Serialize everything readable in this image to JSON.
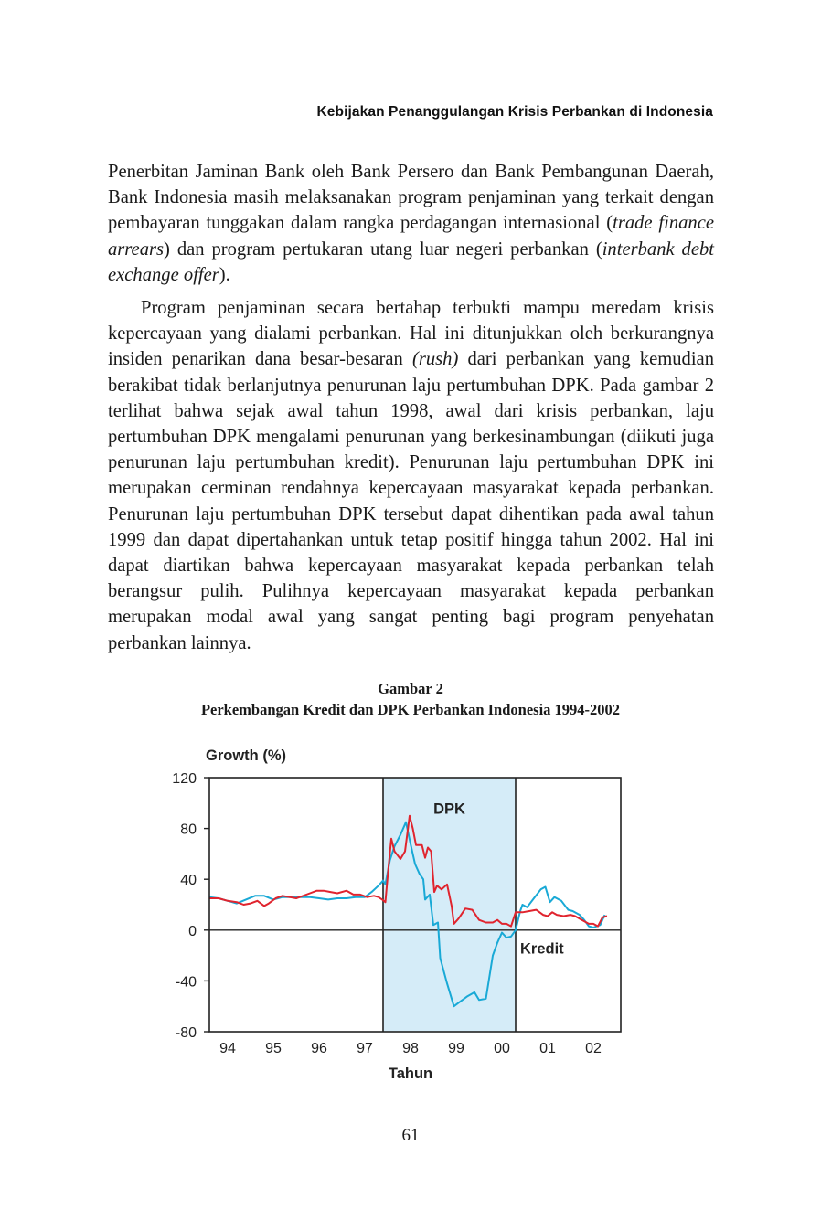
{
  "header": {
    "running_title": "Kebijakan Penanggulangan Krisis Perbankan di Indonesia"
  },
  "body": {
    "p1": [
      {
        "text": "Penerbitan Jaminan Bank oleh Bank Persero dan Bank Pembangunan Daerah, Bank Indonesia masih melaksanakan program penjaminan yang terkait dengan pembayaran tunggakan dalam rangka perdagangan internasional (",
        "italic": false
      },
      {
        "text": "trade finance arrears",
        "italic": true
      },
      {
        "text": ") dan program pertukaran utang luar negeri perbankan (",
        "italic": false
      },
      {
        "text": "interbank debt exchange offer",
        "italic": true
      },
      {
        "text": ").",
        "italic": false
      }
    ],
    "p2": [
      {
        "text": "Program penjaminan secara bertahap terbukti mampu meredam krisis kepercayaan yang dialami perbankan. Hal ini ditunjukkan oleh berkurangnya insiden penarikan dana besar-besaran ",
        "italic": false
      },
      {
        "text": "(rush)",
        "italic": true
      },
      {
        "text": " dari perbankan yang kemudian berakibat tidak berlanjutnya penurunan laju pertumbuhan DPK. Pada gambar 2 terlihat bahwa sejak awal tahun 1998, awal dari krisis perbankan, laju pertumbuhan DPK mengalami penurunan yang berkesinambungan (diikuti juga penurunan laju pertumbuhan kredit). Penurunan laju pertumbuhan DPK ini merupakan cerminan rendahnya kepercayaan masyarakat kepada perbankan. Penurunan laju pertumbuhan DPK tersebut dapat dihentikan pada awal tahun 1999 dan dapat dipertahankan untuk tetap positif hingga tahun 2002. Hal ini dapat diartikan bahwa kepercayaan masyarakat kepada perbankan telah berangsur pulih. Pulihnya kepercayaan masyarakat kepada perbankan merupakan modal awal yang sangat penting bagi program penyehatan perbankan lainnya.",
        "italic": false
      }
    ]
  },
  "figure": {
    "label": "Gambar 2",
    "title": "Perkembangan Kredit dan DPK Perbankan Indonesia 1994-2002"
  },
  "chart_data": {
    "type": "line",
    "ylabel": "Growth (%)",
    "xlabel": "Tahun",
    "ylim": [
      -80,
      120
    ],
    "yticks": [
      120,
      80,
      40,
      0,
      -40,
      -80
    ],
    "xlim": [
      1993.6,
      2002.6
    ],
    "xticks": [
      {
        "label": "94",
        "value": 1994.0
      },
      {
        "label": "95",
        "value": 1995.0
      },
      {
        "label": "96",
        "value": 1996.0
      },
      {
        "label": "97",
        "value": 1997.0
      },
      {
        "label": "98",
        "value": 1998.0
      },
      {
        "label": "99",
        "value": 1999.0
      },
      {
        "label": "00",
        "value": 2000.0
      },
      {
        "label": "01",
        "value": 2001.0
      },
      {
        "label": "02",
        "value": 2002.0
      }
    ],
    "shaded_region": {
      "label": "DPK",
      "x_start": 1997.4,
      "x_end": 2000.3,
      "color": "#d5ecf8"
    },
    "zero_line": true,
    "series": [
      {
        "name": "DPK",
        "color": "#19a9d6",
        "points": [
          [
            1993.6,
            26
          ],
          [
            1993.8,
            25
          ],
          [
            1994.0,
            23
          ],
          [
            1994.2,
            21
          ],
          [
            1994.4,
            24
          ],
          [
            1994.6,
            27
          ],
          [
            1994.8,
            27
          ],
          [
            1995.0,
            24
          ],
          [
            1995.2,
            26
          ],
          [
            1995.4,
            26
          ],
          [
            1995.6,
            26
          ],
          [
            1995.8,
            26
          ],
          [
            1996.0,
            25
          ],
          [
            1996.2,
            24
          ],
          [
            1996.4,
            25
          ],
          [
            1996.6,
            25
          ],
          [
            1996.8,
            26
          ],
          [
            1997.0,
            26
          ],
          [
            1997.15,
            30
          ],
          [
            1997.3,
            35
          ],
          [
            1997.4,
            39
          ],
          [
            1997.45,
            36
          ],
          [
            1997.55,
            55
          ],
          [
            1997.65,
            66
          ],
          [
            1997.78,
            75
          ],
          [
            1997.9,
            85
          ],
          [
            1998.0,
            68
          ],
          [
            1998.1,
            52
          ],
          [
            1998.2,
            44
          ],
          [
            1998.28,
            40
          ],
          [
            1998.32,
            24
          ],
          [
            1998.42,
            28
          ],
          [
            1998.5,
            4
          ],
          [
            1998.6,
            6
          ],
          [
            1998.65,
            -22
          ],
          [
            1998.8,
            -42
          ],
          [
            1998.95,
            -60
          ],
          [
            1999.1,
            -56
          ],
          [
            1999.25,
            -52
          ],
          [
            1999.4,
            -49
          ],
          [
            1999.5,
            -55
          ],
          [
            1999.65,
            -54
          ],
          [
            1999.8,
            -20
          ],
          [
            1999.9,
            -10
          ],
          [
            2000.0,
            -2
          ],
          [
            2000.1,
            -6
          ],
          [
            2000.2,
            -5
          ],
          [
            2000.3,
            0
          ],
          [
            2000.4,
            15
          ],
          [
            2000.45,
            20
          ],
          [
            2000.55,
            18
          ],
          [
            2000.7,
            25
          ],
          [
            2000.85,
            32
          ],
          [
            2000.95,
            34
          ],
          [
            2001.05,
            22
          ],
          [
            2001.15,
            26
          ],
          [
            2001.3,
            23
          ],
          [
            2001.45,
            16
          ],
          [
            2001.55,
            15
          ],
          [
            2001.7,
            12
          ],
          [
            2001.8,
            8
          ],
          [
            2001.9,
            3
          ],
          [
            2002.0,
            2
          ],
          [
            2002.15,
            4
          ],
          [
            2002.25,
            12
          ]
        ]
      },
      {
        "name": "Kredit",
        "color": "#e0242e",
        "points": [
          [
            1993.6,
            25
          ],
          [
            1993.8,
            25
          ],
          [
            1994.0,
            23
          ],
          [
            1994.2,
            22
          ],
          [
            1994.35,
            20
          ],
          [
            1994.5,
            21
          ],
          [
            1994.65,
            23
          ],
          [
            1994.8,
            19
          ],
          [
            1994.9,
            21
          ],
          [
            1995.05,
            25
          ],
          [
            1995.2,
            27
          ],
          [
            1995.35,
            26
          ],
          [
            1995.5,
            25
          ],
          [
            1995.65,
            27
          ],
          [
            1995.8,
            29
          ],
          [
            1995.95,
            31
          ],
          [
            1996.1,
            31
          ],
          [
            1996.25,
            30
          ],
          [
            1996.4,
            29
          ],
          [
            1996.6,
            31
          ],
          [
            1996.75,
            28
          ],
          [
            1996.9,
            28
          ],
          [
            1997.05,
            26
          ],
          [
            1997.2,
            27
          ],
          [
            1997.3,
            26
          ],
          [
            1997.38,
            24
          ],
          [
            1997.45,
            22
          ],
          [
            1997.52,
            50
          ],
          [
            1997.58,
            72
          ],
          [
            1997.65,
            62
          ],
          [
            1997.78,
            56
          ],
          [
            1997.88,
            62
          ],
          [
            1997.98,
            90
          ],
          [
            1998.05,
            80
          ],
          [
            1998.12,
            67
          ],
          [
            1998.25,
            67
          ],
          [
            1998.32,
            57
          ],
          [
            1998.38,
            65
          ],
          [
            1998.45,
            62
          ],
          [
            1998.52,
            30
          ],
          [
            1998.58,
            35
          ],
          [
            1998.68,
            32
          ],
          [
            1998.8,
            36
          ],
          [
            1998.9,
            19
          ],
          [
            1998.95,
            5
          ],
          [
            1999.05,
            9
          ],
          [
            1999.2,
            17
          ],
          [
            1999.35,
            16
          ],
          [
            1999.5,
            8
          ],
          [
            1999.65,
            6
          ],
          [
            1999.8,
            6
          ],
          [
            1999.9,
            8
          ],
          [
            2000.0,
            5
          ],
          [
            2000.1,
            5
          ],
          [
            2000.2,
            3
          ],
          [
            2000.3,
            14
          ],
          [
            2000.45,
            14
          ],
          [
            2000.6,
            15
          ],
          [
            2000.75,
            16
          ],
          [
            2000.9,
            12
          ],
          [
            2001.0,
            11
          ],
          [
            2001.1,
            14
          ],
          [
            2001.2,
            12
          ],
          [
            2001.35,
            11
          ],
          [
            2001.5,
            12
          ],
          [
            2001.6,
            11
          ],
          [
            2001.75,
            8
          ],
          [
            2001.9,
            5
          ],
          [
            2002.0,
            5
          ],
          [
            2002.1,
            3
          ],
          [
            2002.2,
            10
          ],
          [
            2002.3,
            11
          ]
        ]
      }
    ],
    "series_labels": [
      {
        "text": "DPK",
        "x": 1998.85,
        "y": 96
      },
      {
        "text": "Kredit",
        "x": 2000.4,
        "y": -14
      }
    ]
  },
  "page": {
    "number": "61"
  }
}
